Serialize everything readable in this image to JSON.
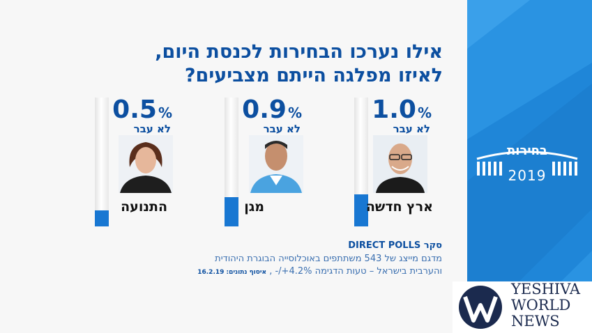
{
  "title": {
    "line1": "אילו נערכו הבחירות לכנסת היום,",
    "line2": "לאיזו מפלגה הייתם מצביעים?"
  },
  "chart_data": {
    "type": "bar",
    "categories": [
      "ארץ חדשה",
      "מגן",
      "התנועה"
    ],
    "values": [
      1.0,
      0.9,
      0.5
    ],
    "value_labels": [
      "1.0",
      "0.9",
      "0.5"
    ],
    "unit": "%",
    "sublabel": "לא עבר",
    "ylim": [
      0,
      4.0
    ]
  },
  "footer": {
    "head": "סקר DIRECT POLLS",
    "line1": "מדגם מייצג של 543 משתתפים באוכלוסייה הבוגרת היהודית",
    "line2": "והערבית בישראל – טעות הדגימה 4.2%+/- , ",
    "date": "איסוף נתונים: 16.2.19"
  },
  "logo": {
    "word": "בחירות",
    "year": "2019"
  },
  "watermark": {
    "line1": "YESHIVA",
    "line2": "WORLD",
    "line3": "NEWS"
  },
  "colors": {
    "accent": "#1877d2",
    "title": "#0c4fa0",
    "panel": "#1f86d8"
  }
}
